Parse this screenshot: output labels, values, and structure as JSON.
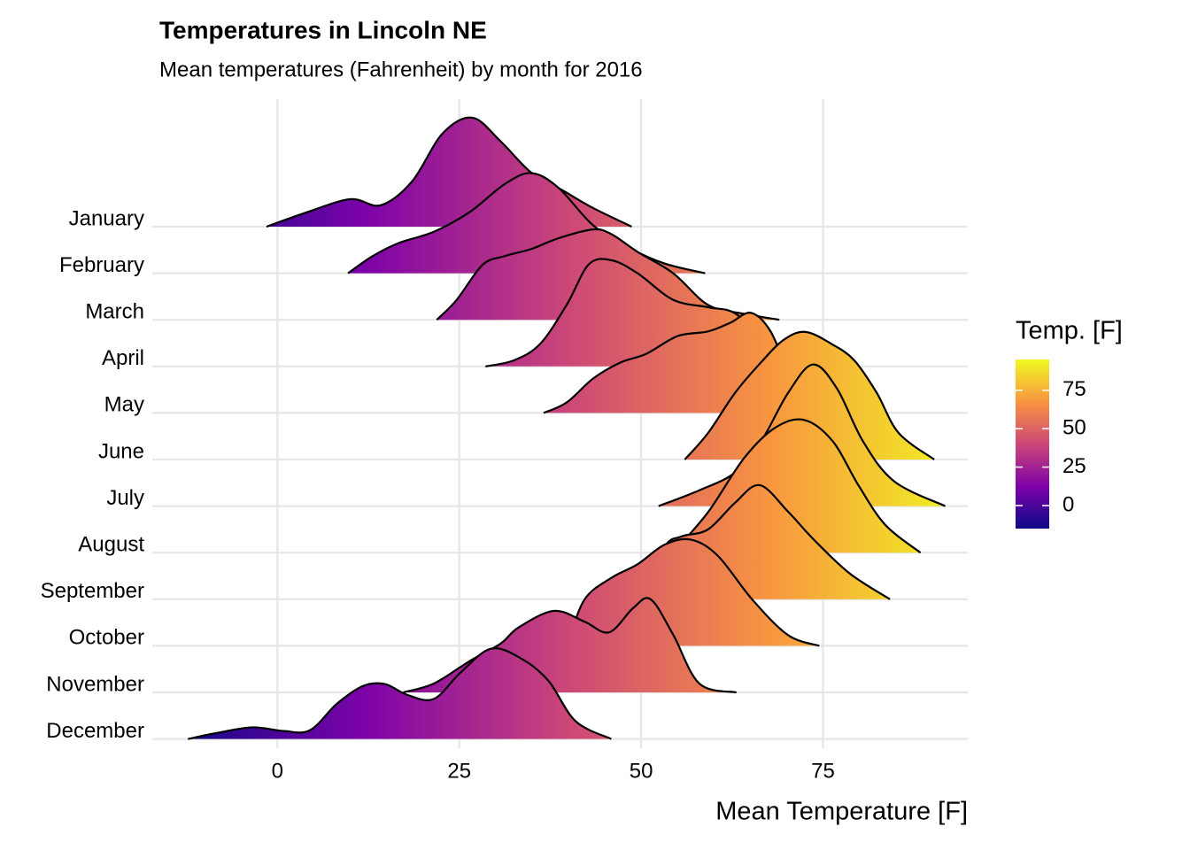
{
  "chart_data": {
    "type": "ridgeline",
    "title": "Temperatures in Lincoln NE",
    "subtitle": "Mean temperatures (Fahrenheit) by month for 2016",
    "x_label": "Mean Temperature [F]",
    "legend_title": "Temp. [F]",
    "xlim": [
      -17.2,
      94.9
    ],
    "xticks": [
      0,
      25,
      50,
      75
    ],
    "grid": true,
    "colorbar_lim": [
      -15,
      95
    ],
    "colorbar_ticks": [
      0,
      25,
      50,
      75
    ],
    "colormap": [
      "#0d0887",
      "#7e03a8",
      "#cc4778",
      "#f89540",
      "#f0f921"
    ],
    "series": [
      {
        "name": "January",
        "x": [
          -1.5,
          3.9,
          10,
          14.2,
          18.5,
          22.7,
          26.8,
          30.7,
          34.9,
          39.2,
          43.4,
          48.7
        ],
        "density": [
          0,
          0.3,
          0.59,
          0.46,
          0.97,
          2.0,
          2.34,
          1.83,
          1.16,
          0.78,
          0.4,
          0
        ]
      },
      {
        "name": "February",
        "x": [
          9.7,
          13,
          16.7,
          21.5,
          26.4,
          31.3,
          34.9,
          38.6,
          43.4,
          48.3,
          53.2,
          58.8
        ],
        "density": [
          0,
          0.36,
          0.65,
          0.89,
          1.31,
          1.92,
          2.15,
          1.84,
          1.03,
          0.55,
          0.21,
          0
        ]
      },
      {
        "name": "March",
        "x": [
          21.9,
          24.6,
          28.2,
          31.3,
          34.9,
          38.6,
          43.4,
          45.9,
          49.5,
          54.4,
          59.2,
          64.1,
          69
        ],
        "density": [
          0,
          0.42,
          1.18,
          1.37,
          1.52,
          1.75,
          1.94,
          1.84,
          1.46,
          1.0,
          0.32,
          0.13,
          0
        ]
      },
      {
        "name": "April",
        "x": [
          28.6,
          32.5,
          36.1,
          39.8,
          42.8,
          45.9,
          49.5,
          54.4,
          59.2,
          62.9,
          66.5,
          70.2
        ],
        "density": [
          0,
          0.13,
          0.48,
          1.33,
          2.19,
          2.28,
          2.0,
          1.43,
          1.27,
          1.14,
          0.57,
          0
        ]
      },
      {
        "name": "May",
        "x": [
          36.6,
          39.8,
          43.4,
          47.1,
          50.7,
          55,
          59.2,
          62.3,
          65.1,
          67.8,
          70.8,
          73.8,
          76.3
        ],
        "density": [
          0,
          0.23,
          0.74,
          1.08,
          1.27,
          1.65,
          1.75,
          1.94,
          2.15,
          1.75,
          0.7,
          0.1,
          0
        ]
      },
      {
        "name": "June",
        "x": [
          56,
          59.2,
          62.9,
          66.5,
          69.6,
          72.6,
          76.3,
          79.3,
          82.4,
          85.4,
          90.3
        ],
        "density": [
          0,
          0.57,
          1.43,
          2.09,
          2.57,
          2.74,
          2.47,
          2.13,
          1.43,
          0.57,
          0
        ]
      },
      {
        "name": "July",
        "x": [
          52.4,
          58,
          62.9,
          66.5,
          70.2,
          73.6,
          76.9,
          80.5,
          84.8,
          91.8
        ],
        "density": [
          0,
          0.34,
          0.72,
          1.39,
          2.43,
          3.04,
          2.53,
          1.39,
          0.53,
          0
        ]
      },
      {
        "name": "August",
        "x": [
          54.4,
          59.2,
          64.1,
          68.4,
          72.4,
          76.3,
          79.9,
          83.6,
          88.4
        ],
        "density": [
          0,
          0.87,
          2.02,
          2.68,
          2.85,
          2.4,
          1.44,
          0.59,
          0
        ]
      },
      {
        "name": "September",
        "x": [
          50.1,
          53.2,
          55.6,
          59.2,
          62.9,
          66.3,
          70.2,
          73.8,
          78.7,
          84.2
        ],
        "density": [
          0,
          1.12,
          1.35,
          1.5,
          2.07,
          2.45,
          1.88,
          1.27,
          0.55,
          0
        ]
      },
      {
        "name": "October",
        "x": [
          39.8,
          42.2,
          45.9,
          49.5,
          53.2,
          56.8,
          60.5,
          65.3,
          70.2,
          74.5
        ],
        "density": [
          0,
          0.99,
          1.46,
          1.75,
          2.17,
          2.28,
          1.94,
          0.99,
          0.23,
          0
        ]
      },
      {
        "name": "November",
        "x": [
          17.3,
          21.5,
          26.4,
          30.7,
          33.1,
          38,
          42.2,
          45.6,
          48.9,
          51.3,
          54.4,
          58,
          63.1
        ],
        "density": [
          0,
          0.19,
          0.67,
          1.05,
          1.39,
          1.75,
          1.52,
          1.29,
          1.81,
          2.0,
          1.24,
          0.19,
          0
        ]
      },
      {
        "name": "December",
        "x": [
          -12.3,
          -8.3,
          -3.4,
          0.9,
          4.5,
          8.2,
          11.8,
          14.8,
          17.8,
          21.5,
          25.2,
          29.4,
          33.7,
          37.3,
          41,
          45.9
        ],
        "density": [
          0,
          0.13,
          0.25,
          0.17,
          0.19,
          0.76,
          1.14,
          1.18,
          0.95,
          0.86,
          1.43,
          1.94,
          1.71,
          1.24,
          0.38,
          0
        ]
      }
    ]
  }
}
